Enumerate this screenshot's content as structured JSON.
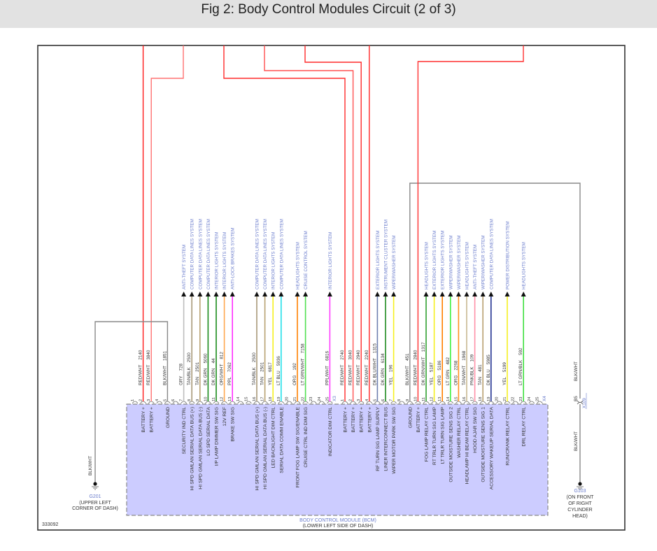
{
  "title": "Fig 2: Body Control Modules Circuit (2 of 3)",
  "diagram_id": "333092",
  "module": {
    "name": "BODY CONTROL MODULE (BCM)",
    "location": "(LOWER LEFT SIDE OF DASH)",
    "fill": "#ccccff"
  },
  "connectors": [
    {
      "name": "X3",
      "pins": [
        {
          "pin": "1"
        },
        {
          "pin": "2",
          "name": "BATTERY +",
          "color": "RED/WHT",
          "circuit": "2140",
          "hex": "#ff1a1a"
        },
        {
          "pin": "3",
          "name": "BATTERY +",
          "color": "RED/WHT",
          "circuit": "3840",
          "hex": "#ff7070"
        },
        {
          "pin": "4"
        },
        {
          "pin": "5",
          "name": "GROUND",
          "color": "BLK/WHT",
          "circuit": "1851",
          "hex": "#888888"
        },
        {
          "pin": "6"
        },
        {
          "pin": "7",
          "name": "SECURITY IND CTRL",
          "color": "GRY",
          "circuit": "728",
          "hex": "#bdbdbd",
          "system": "ANTI-THEFT SYSTEM"
        },
        {
          "pin": "8",
          "name": "HI SPD GMLAN SERIAL DATA BUS (+)",
          "color": "TAN/BLK",
          "circuit": "2500",
          "hex": "#a89878",
          "system": "COMPUTER DATA LINES SYSTEM"
        },
        {
          "pin": "9",
          "name": "HI SPD GMLAN SERIAL DATA BUS (-)",
          "color": "TAN",
          "circuit": "2501",
          "hex": "#b8a070",
          "system": "COMPUTER DATA LINES SYSTEM"
        },
        {
          "pin": "10",
          "name": "LO SPD SERIAL DATA",
          "color": "DK GRN",
          "circuit": "5060",
          "hex": "#1a8a1a",
          "system": "COMPUTER DATA LINES SYSTEM"
        },
        {
          "pin": "11",
          "name": "I/P LAMP DIMMER SW SIG",
          "color": "DK GRN",
          "circuit": "44",
          "hex": "#1a8a1a",
          "system": "INTERIOR LIGHTS SYSTEM"
        },
        {
          "pin": "12",
          "name": "12V REF",
          "color": "ORG/WHT",
          "circuit": "812",
          "hex": "#ffa850",
          "system": "INTERIOR LIGHTS SYSTEM"
        },
        {
          "pin": "13",
          "name": "BRAKE SW SIG",
          "color": "PPL",
          "circuit": "7062",
          "hex": "#ff30ff",
          "system": "ANTI-LOCK BRAKES SYSTEM"
        },
        {
          "pin": "14"
        },
        {
          "pin": "15"
        },
        {
          "pin": "16",
          "name": "HI SPD GMLAN SERIAL DATA BUS (+)",
          "color": "TAN/BLK",
          "circuit": "2500",
          "hex": "#a89878",
          "system": "COMPUTER DATA LINES SYSTEM"
        },
        {
          "pin": "17",
          "name": "HI SPD GMLAN SERIAL DATA BUS (-)",
          "color": "TAN",
          "circuit": "2501",
          "hex": "#b8a070",
          "system": "COMPUTER DATA LINES SYSTEM"
        },
        {
          "pin": "18",
          "name": "LED BACKLIGHT DIM CTRL",
          "color": "YEL",
          "circuit": "6817",
          "hex": "#f5f020",
          "system": "INTERIOR LIGHTS SYSTEM"
        },
        {
          "pin": "19",
          "name": "SERIAL DATA COMM ENABLE",
          "color": "LT BLU",
          "circuit": "5936",
          "hex": "#20e0e8",
          "system": "COMPUTER DATA LINES SYSTEM"
        },
        {
          "pin": "20"
        },
        {
          "pin": "21",
          "name": "FRONT FOG LAMP SW SIG/ENABLE",
          "color": "ORG",
          "circuit": "192",
          "hex": "#ff8000",
          "system": "HEADLIGHTS SYSTEM"
        },
        {
          "pin": "22",
          "name": "CRUISE CTRL IND DIM SIG",
          "color": "LT GRN/WHT",
          "circuit": "7158",
          "hex": "#50e050",
          "system": "CRUISE CONTROL SYSTEM"
        },
        {
          "pin": "23"
        },
        {
          "pin": "24"
        },
        {
          "pin": "25",
          "name": "INDICATOR DIM CTRL",
          "color": "PPL/WHT",
          "circuit": "6816",
          "hex": "#ff40ff",
          "system": "INTERIOR LIGHTS SYSTEM"
        }
      ]
    },
    {
      "name": "X4",
      "pins": [
        {
          "pin": "1",
          "name": "BATTERY +",
          "color": "RED/WHT",
          "circuit": "2740",
          "hex": "#ff2a2a"
        },
        {
          "pin": "2",
          "name": "BATTERY +",
          "color": "RED/WHT",
          "circuit": "3040",
          "hex": "#ff5050"
        },
        {
          "pin": "3",
          "name": "BATTERY +",
          "color": "RED/WHT",
          "circuit": "2940",
          "hex": "#ff2a2a"
        },
        {
          "pin": "4",
          "name": "BATTERY +",
          "color": "RED/WHT",
          "circuit": "2240",
          "hex": "#ff2a2a"
        },
        {
          "pin": "5",
          "name": "RF TURN SIG LAMP SUPPLY",
          "color": "DK BLU/WHT",
          "circuit": "1315",
          "hex": "#7080b0",
          "system": "EXTERIOR LIGHTS SYSTEM"
        },
        {
          "pin": "6",
          "name": "LINER INTERCONNECT BUS",
          "color": "DK GRN",
          "circuit": "6134",
          "hex": "#208a20",
          "system": "INSTRUMENT CLUSTER SYSTEM"
        },
        {
          "pin": "7",
          "name": "WIPER MOTOR PARK SW SIG",
          "color": "YEL",
          "circuit": "196",
          "hex": "#f5f020",
          "system": "WIPER/WASHER SYSTEM"
        },
        {
          "pin": "8"
        },
        {
          "pin": "9",
          "name": "GROUND",
          "color": "BLK/WHT",
          "circuit": "451",
          "hex": "#888888"
        },
        {
          "pin": "10",
          "name": "BATTERY +",
          "color": "RED/WHT",
          "circuit": "2840",
          "hex": "#ff3030"
        },
        {
          "pin": "11",
          "name": "FOG LAMP RELAY CTRL",
          "color": "DK GRN/WHT",
          "circuit": "1317",
          "hex": "#30a030",
          "system": "HEADLIGHTS SYSTEM"
        },
        {
          "pin": "12",
          "name": "RT TRLR TURN SIG LAMP",
          "color": "YEL",
          "circuit": "5187",
          "hex": "#f5f020",
          "system": "EXTERIOR LIGHTS SYSTEM"
        },
        {
          "pin": "13",
          "name": "LT TRLR TURN SIG LAMP",
          "color": "ORG",
          "circuit": "5186",
          "hex": "#ff8000",
          "system": "EXTERIOR LIGHTS SYSTEM"
        },
        {
          "pin": "14",
          "name": "OUTSIDE MOISTURE SENS SIG 2",
          "color": "LT GRN",
          "circuit": "482",
          "hex": "#40f040",
          "system": "WIPER/WASHER SYSTEM"
        },
        {
          "pin": "15",
          "name": "WASHER RELAY CTRL",
          "color": "ORG",
          "circuit": "2268",
          "hex": "#ff9020",
          "system": "WIPER/WASHER SYSTEM"
        },
        {
          "pin": "16",
          "name": "HEADLAMP HI BEAM RELAY CTRL",
          "color": "TAN/WHT",
          "circuit": "1968",
          "hex": "#c8b890",
          "system": "HEADLIGHTS SYSTEM"
        },
        {
          "pin": "17",
          "name": "HOOD AJAR SW SIG",
          "color": "PNK/BLK",
          "circuit": "109",
          "hex": "#ff90a8",
          "system": "ANTI-THEFT SYSTEM"
        },
        {
          "pin": "18",
          "name": "OUTSIDE MOISTURE SENS SIG 1",
          "color": "TAN",
          "circuit": "481",
          "hex": "#b8a070",
          "system": "WIPER/WASHER SYSTEM"
        },
        {
          "pin": "19",
          "name": "ACCESSORY WAKEUP SERIAL DATA",
          "color": "DK BLU",
          "circuit": "5985",
          "hex": "#203090",
          "system": "COMPUTER DATA LINES SYSTEM"
        },
        {
          "pin": "20"
        },
        {
          "pin": "21",
          "name": "RUN/CRANK RELAY CTRL",
          "color": "YEL",
          "circuit": "5199",
          "hex": "#f5f020",
          "system": "POWER DISTRIBUTION SYSTEM"
        },
        {
          "pin": "22"
        },
        {
          "pin": "23",
          "name": "DRL RELAY CTRL",
          "color": "LT GRN/BLK",
          "circuit": "592",
          "hex": "#40e040",
          "system": "HEADLIGHTS SYSTEM"
        },
        {
          "pin": "24"
        },
        {
          "pin": "25"
        }
      ]
    }
  ],
  "grounds": [
    {
      "id": "G201",
      "wire": "BLK/WHT",
      "location": [
        "(UPPER LEFT",
        "CORNER OF DASH)"
      ]
    },
    {
      "id": "G103",
      "wire": "BLK/WHT",
      "location": [
        "(ON FRONT",
        "OF RIGHT",
        "CYLINDER",
        "HEAD)"
      ]
    }
  ],
  "inline_connector": {
    "name": "X109",
    "pin": "B5",
    "wire_above": "BLK/WHT",
    "wire_below": "BLK/WHT"
  },
  "colors": {
    "system_text": "#6a7ccc",
    "frame": "#333333",
    "ground_wire": "#777777"
  }
}
